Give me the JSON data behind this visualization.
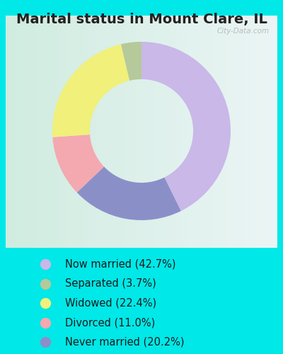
{
  "title": "Marital status in Mount Clare, IL",
  "slices": [
    42.7,
    20.2,
    11.0,
    22.4,
    3.7
  ],
  "labels": [
    "Now married (42.7%)",
    "Separated (3.7%)",
    "Widowed (22.4%)",
    "Divorced (11.0%)",
    "Never married (20.2%)"
  ],
  "legend_colors": [
    "#c9b8e8",
    "#b5c99a",
    "#f0f07a",
    "#f4a8b0",
    "#8b8fc8"
  ],
  "slice_colors": [
    "#c9b8e8",
    "#8b8fc8",
    "#f4a8b0",
    "#f0f07a",
    "#b5c99a"
  ],
  "background_cyan": "#00e8e8",
  "title_color": "#222222",
  "title_fontsize": 14,
  "legend_fontsize": 10.5,
  "watermark": "City-Data.com",
  "donut_width": 0.42,
  "panel_bg_left": "#d0ece0",
  "panel_bg_right": "#e8f0f0"
}
